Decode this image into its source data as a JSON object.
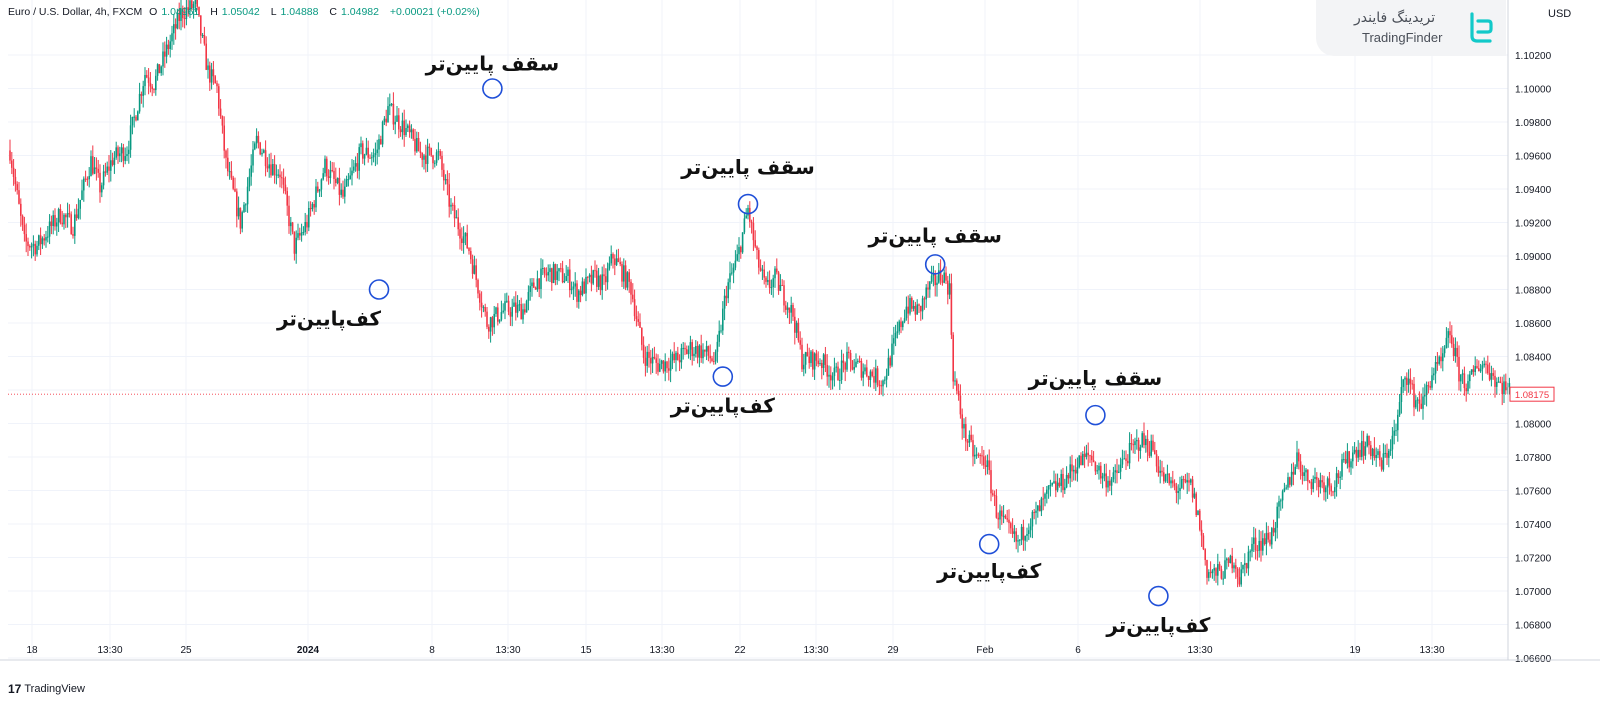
{
  "header": {
    "symbol": "Euro / U.S. Dollar, 4h, FXCM",
    "open_label": "O",
    "open": "1.04961",
    "high_label": "H",
    "high": "1.05042",
    "low_label": "L",
    "low": "1.04888",
    "close_label": "C",
    "close": "1.04982",
    "change": "+0.00021 (+0.02%)"
  },
  "logo": {
    "fa": "تریدینگ فایندر",
    "en": "TradingFinder"
  },
  "currency": "USD",
  "brand": "TradingView",
  "colors": {
    "up": "#089981",
    "down": "#f23645",
    "annotation": "#1f4fd8",
    "grid": "#f0f3fa"
  },
  "chart_data": {
    "type": "candlestick",
    "instrument": "EUR/USD",
    "timeframe": "4h",
    "x_tick_labels": [
      "18",
      "13:30",
      "25",
      "2024",
      "8",
      "13:30",
      "15",
      "13:30",
      "22",
      "13:30",
      "29",
      "Feb",
      "6",
      "13:30",
      "19",
      "13:30"
    ],
    "y_tick_labels": [
      "1.10200",
      "1.10000",
      "1.09800",
      "1.09600",
      "1.09400",
      "1.09200",
      "1.09000",
      "1.08800",
      "1.08600",
      "1.08400",
      "1.08200",
      "1.08000",
      "1.07800",
      "1.07600",
      "1.07400",
      "1.07200",
      "1.07000",
      "1.06800",
      "1.06600"
    ],
    "ylim": [
      1.0654,
      1.1024
    ],
    "last_price": "1.08175",
    "path": [
      [
        0,
        1.0963
      ],
      [
        8,
        1.0908
      ],
      [
        15,
        1.0906
      ],
      [
        28,
        1.0925
      ],
      [
        35,
        1.0918
      ],
      [
        45,
        1.0957
      ],
      [
        50,
        1.0941
      ],
      [
        57,
        1.0958
      ],
      [
        65,
        1.0964
      ],
      [
        75,
        1.1009
      ],
      [
        80,
        1.1003
      ],
      [
        95,
        1.1045
      ],
      [
        103,
        1.105
      ],
      [
        110,
        1.101
      ],
      [
        115,
        1.1
      ],
      [
        120,
        1.0955
      ],
      [
        128,
        1.092
      ],
      [
        137,
        1.0969
      ],
      [
        145,
        1.0954
      ],
      [
        150,
        1.095
      ],
      [
        158,
        1.0905
      ],
      [
        165,
        1.092
      ],
      [
        175,
        1.0954
      ],
      [
        185,
        1.0935
      ],
      [
        195,
        1.0962
      ],
      [
        203,
        1.096
      ],
      [
        210,
        1.0988
      ],
      [
        220,
        1.0975
      ],
      [
        228,
        1.0961
      ],
      [
        238,
        1.096
      ],
      [
        245,
        1.0928
      ],
      [
        255,
        1.0904
      ],
      [
        265,
        1.086
      ],
      [
        275,
        1.0868
      ],
      [
        285,
        1.0868
      ],
      [
        292,
        1.0885
      ],
      [
        300,
        1.089
      ],
      [
        310,
        1.0887
      ],
      [
        315,
        1.0878
      ],
      [
        325,
        1.0887
      ],
      [
        330,
        1.0883
      ],
      [
        335,
        1.09
      ],
      [
        345,
        1.0881
      ],
      [
        352,
        1.0841
      ],
      [
        360,
        1.0835
      ],
      [
        370,
        1.0838
      ],
      [
        378,
        1.0845
      ],
      [
        385,
        1.0843
      ],
      [
        392,
        1.0837
      ],
      [
        398,
        1.088
      ],
      [
        404,
        1.0898
      ],
      [
        410,
        1.0928
      ],
      [
        415,
        1.0898
      ],
      [
        420,
        1.088
      ],
      [
        425,
        1.0887
      ],
      [
        435,
        1.0865
      ],
      [
        440,
        1.0838
      ],
      [
        450,
        1.0838
      ],
      [
        458,
        1.0828
      ],
      [
        465,
        1.0837
      ],
      [
        475,
        1.0832
      ],
      [
        485,
        1.0825
      ],
      [
        492,
        1.085
      ],
      [
        498,
        1.087
      ],
      [
        505,
        1.0867
      ],
      [
        510,
        1.088
      ],
      [
        518,
        1.089
      ],
      [
        522,
        1.088
      ],
      [
        524,
        1.083
      ],
      [
        530,
        1.0795
      ],
      [
        536,
        1.078
      ],
      [
        542,
        1.0778
      ],
      [
        548,
        1.0748
      ],
      [
        555,
        1.0735
      ],
      [
        560,
        1.0728
      ],
      [
        565,
        1.074
      ],
      [
        570,
        1.0745
      ],
      [
        578,
        1.076
      ],
      [
        585,
        1.0765
      ],
      [
        592,
        1.0775
      ],
      [
        600,
        1.0781
      ],
      [
        607,
        1.0768
      ],
      [
        613,
        1.0766
      ],
      [
        620,
        1.078
      ],
      [
        628,
        1.079
      ],
      [
        635,
        1.0785
      ],
      [
        640,
        1.0768
      ],
      [
        648,
        1.0761
      ],
      [
        656,
        1.0763
      ],
      [
        660,
        1.0745
      ],
      [
        665,
        1.0712
      ],
      [
        670,
        1.071
      ],
      [
        675,
        1.0713
      ],
      [
        680,
        1.072
      ],
      [
        683,
        1.0707
      ],
      [
        690,
        1.0727
      ],
      [
        700,
        1.0732
      ],
      [
        710,
        1.0764
      ],
      [
        715,
        1.078
      ],
      [
        720,
        1.0768
      ],
      [
        728,
        1.0765
      ],
      [
        735,
        1.0764
      ],
      [
        740,
        1.0773
      ],
      [
        748,
        1.0785
      ],
      [
        755,
        1.0787
      ],
      [
        762,
        1.0775
      ],
      [
        770,
        1.0796
      ],
      [
        775,
        1.0832
      ],
      [
        780,
        1.0815
      ],
      [
        785,
        1.0812
      ],
      [
        790,
        1.083
      ],
      [
        795,
        1.0835
      ],
      [
        800,
        1.0854
      ],
      [
        805,
        1.083
      ],
      [
        810,
        1.0822
      ],
      [
        815,
        1.0835
      ],
      [
        820,
        1.0835
      ],
      [
        826,
        1.0825
      ],
      [
        833,
        1.082
      ]
    ],
    "annotations": [
      {
        "text": "سقف پایین‌تر",
        "time": 268,
        "price": 1.1,
        "label_position": "above"
      },
      {
        "text": "کف‌پایین‌تر",
        "time": 205,
        "price": 1.088,
        "label_position": "below"
      },
      {
        "text": "سقف پایین‌تر",
        "time": 410,
        "price": 1.0931,
        "label_position": "above"
      },
      {
        "text": "کف‌پایین‌تر",
        "time": 396,
        "price": 1.0828,
        "label_position": "below"
      },
      {
        "text": "سقف پایین‌تر",
        "time": 514,
        "price": 1.0895,
        "label_position": "above"
      },
      {
        "text": "کف‌پایین‌تر",
        "time": 544,
        "price": 1.0728,
        "label_position": "below"
      },
      {
        "text": "سقف پایین‌تر",
        "time": 603,
        "price": 1.0805,
        "label_position": "above"
      },
      {
        "text": "کف‌پایین‌تر",
        "time": 638,
        "price": 1.0697,
        "label_position": "below"
      }
    ]
  }
}
